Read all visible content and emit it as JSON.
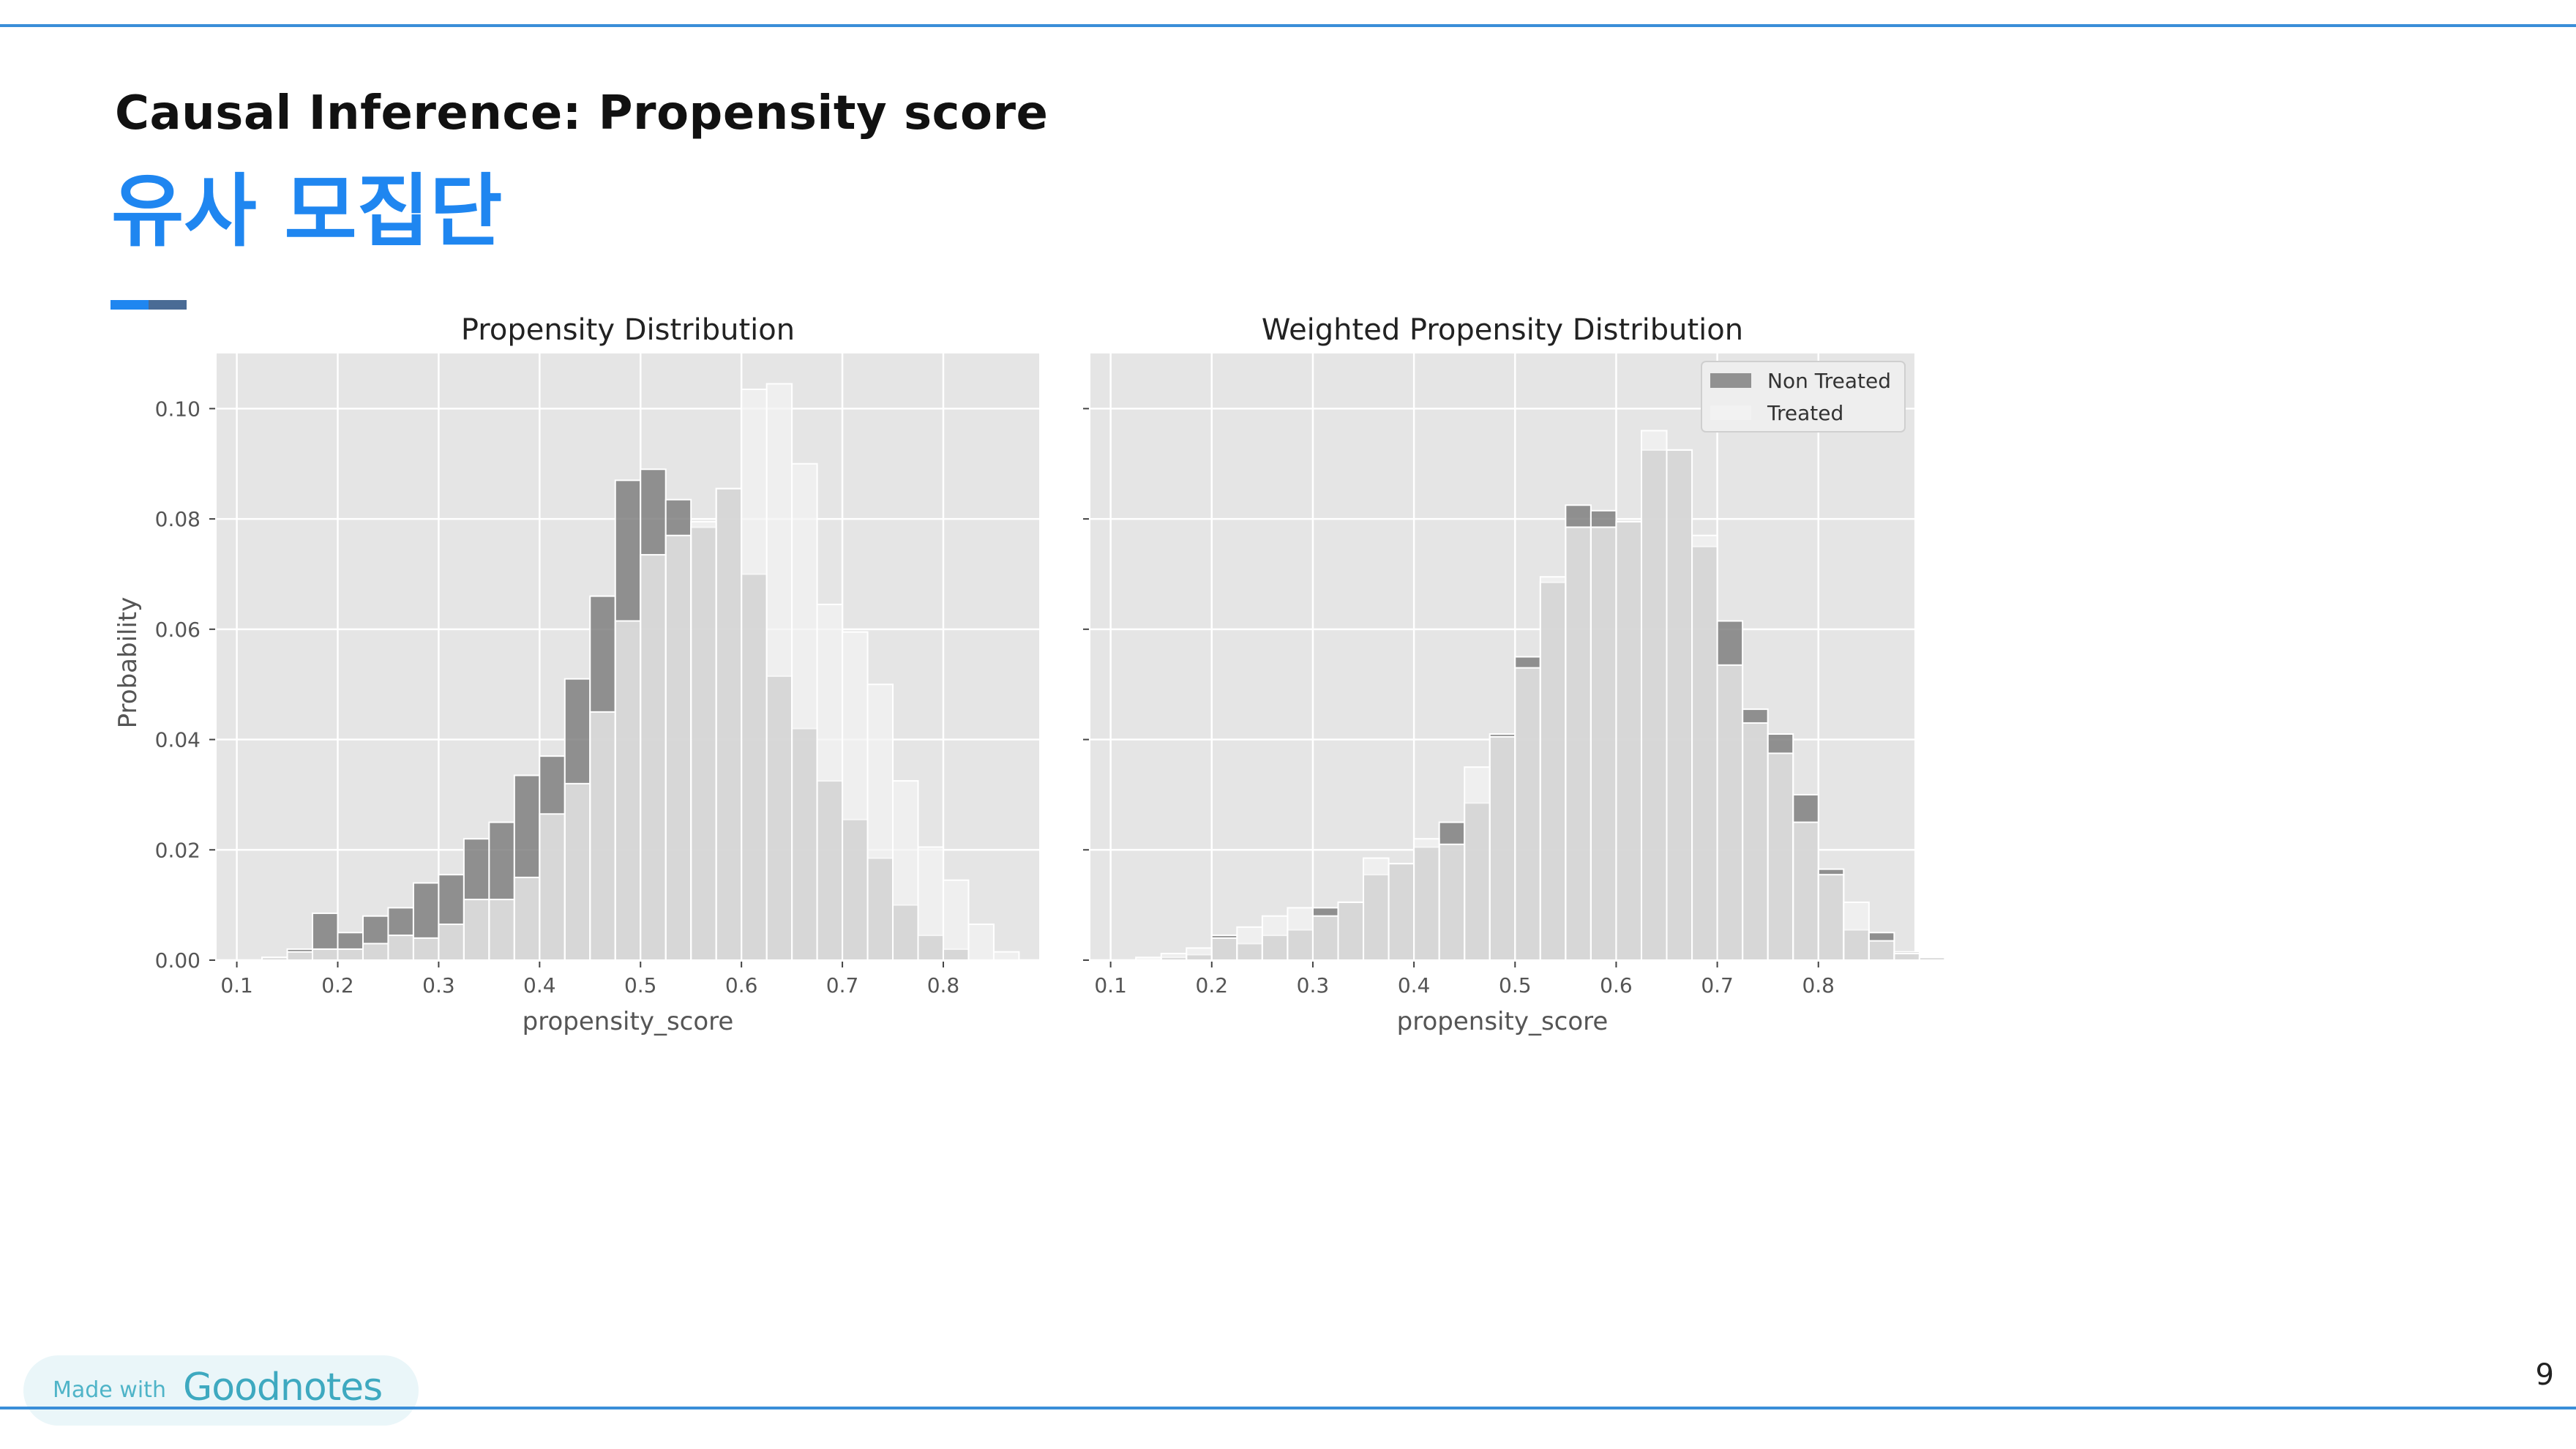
{
  "slide": {
    "kicker": "Causal Inference: Propensity score",
    "heading": "유사 모집단",
    "page_number": "9",
    "badge_small": "Made with",
    "badge_big": "Goodnotes"
  },
  "colors": {
    "accent": "#1f86f0",
    "rule": "#3a8ed8",
    "panel_bg": "#e5e5e5",
    "non_treated": "#808080",
    "treated": "#f2f2f2"
  },
  "chart_data": [
    {
      "type": "bar",
      "title": "Propensity Distribution",
      "xlabel": "propensity_score",
      "ylabel": "Probability",
      "xlim": [
        0.08,
        0.895
      ],
      "ylim": [
        0,
        0.11
      ],
      "xticks": [
        "0.1",
        "0.2",
        "0.3",
        "0.4",
        "0.5",
        "0.6",
        "0.7",
        "0.8"
      ],
      "yticks": [
        "0.00",
        "0.02",
        "0.04",
        "0.06",
        "0.08",
        "0.10"
      ],
      "grid": true,
      "bin_start": 0.1,
      "bin_width": 0.025,
      "series": [
        {
          "role": "non_treated",
          "values": [
            0.0,
            0.0005,
            0.002,
            0.0085,
            0.005,
            0.008,
            0.0095,
            0.014,
            0.0155,
            0.022,
            0.025,
            0.0335,
            0.037,
            0.051,
            0.066,
            0.087,
            0.089,
            0.0835,
            0.0785,
            0.0855,
            0.07,
            0.0515,
            0.042,
            0.0325,
            0.0255,
            0.0185,
            0.01,
            0.0045,
            0.002,
            0.0,
            0.0
          ]
        },
        {
          "role": "treated",
          "values": [
            0.0,
            0.0005,
            0.0015,
            0.002,
            0.002,
            0.003,
            0.0045,
            0.004,
            0.0065,
            0.011,
            0.011,
            0.015,
            0.0265,
            0.032,
            0.045,
            0.0615,
            0.0735,
            0.077,
            0.0795,
            0.0855,
            0.1035,
            0.1045,
            0.09,
            0.0645,
            0.0595,
            0.05,
            0.0325,
            0.0205,
            0.0145,
            0.0065,
            0.0015
          ]
        }
      ]
    },
    {
      "type": "bar",
      "title": "Weighted Propensity Distribution",
      "xlabel": "propensity_score",
      "xlim": [
        0.08,
        0.895
      ],
      "ylim": [
        0,
        0.11
      ],
      "xticks": [
        "0.1",
        "0.2",
        "0.3",
        "0.4",
        "0.5",
        "0.6",
        "0.7",
        "0.8"
      ],
      "grid": true,
      "legend_position": "top-right",
      "legend": [
        "Non Treated",
        "Treated"
      ],
      "bin_start": 0.1,
      "bin_width": 0.025,
      "series": [
        {
          "role": "non_treated",
          "name": "Non Treated",
          "values": [
            0.0,
            0.0002,
            0.0005,
            0.001,
            0.0045,
            0.003,
            0.0045,
            0.0055,
            0.0095,
            0.0105,
            0.0155,
            0.0175,
            0.0205,
            0.025,
            0.0285,
            0.041,
            0.055,
            0.0685,
            0.0825,
            0.0815,
            0.0795,
            0.0925,
            0.0925,
            0.075,
            0.0615,
            0.0455,
            0.041,
            0.03,
            0.0165,
            0.0055,
            0.005,
            0.0015,
            0.0005,
            0.0002
          ]
        },
        {
          "role": "treated",
          "name": "Treated",
          "values": [
            0.0,
            0.0005,
            0.0012,
            0.0022,
            0.004,
            0.006,
            0.008,
            0.0095,
            0.008,
            0.0105,
            0.0185,
            0.0175,
            0.022,
            0.021,
            0.035,
            0.0405,
            0.053,
            0.0695,
            0.0785,
            0.0785,
            0.0795,
            0.096,
            0.0925,
            0.077,
            0.0535,
            0.043,
            0.0375,
            0.025,
            0.0155,
            0.0105,
            0.0035,
            0.0012,
            0.0005,
            0.0002
          ]
        }
      ]
    }
  ]
}
